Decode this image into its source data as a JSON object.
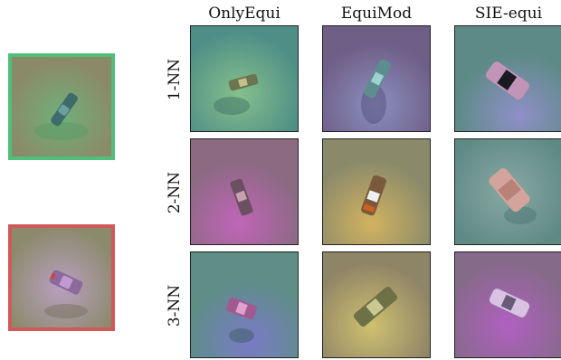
{
  "columns": [
    {
      "label": "OnlyEqui"
    },
    {
      "label": "EquiMod"
    },
    {
      "label": "SIE-equi"
    }
  ],
  "rows": [
    {
      "label": "1-NN"
    },
    {
      "label": "2-NN"
    },
    {
      "label": "3-NN"
    }
  ],
  "colors": {
    "query_top_border": "#4fbf7b",
    "query_bottom_border": "#d05a5a"
  }
}
